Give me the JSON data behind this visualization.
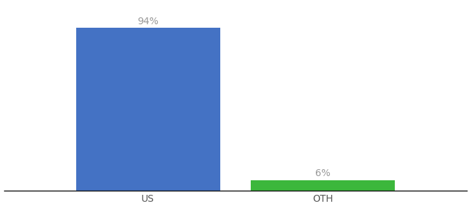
{
  "categories": [
    "US",
    "OTH"
  ],
  "values": [
    94,
    6
  ],
  "bar_colors": [
    "#4472c4",
    "#3cb73c"
  ],
  "label_texts": [
    "94%",
    "6%"
  ],
  "background_color": "#ffffff",
  "ylim": [
    0,
    108
  ],
  "bar_width": 0.28,
  "label_fontsize": 10,
  "tick_fontsize": 10,
  "label_color": "#999999",
  "tick_color": "#555555",
  "x_positions": [
    0.33,
    0.67
  ]
}
